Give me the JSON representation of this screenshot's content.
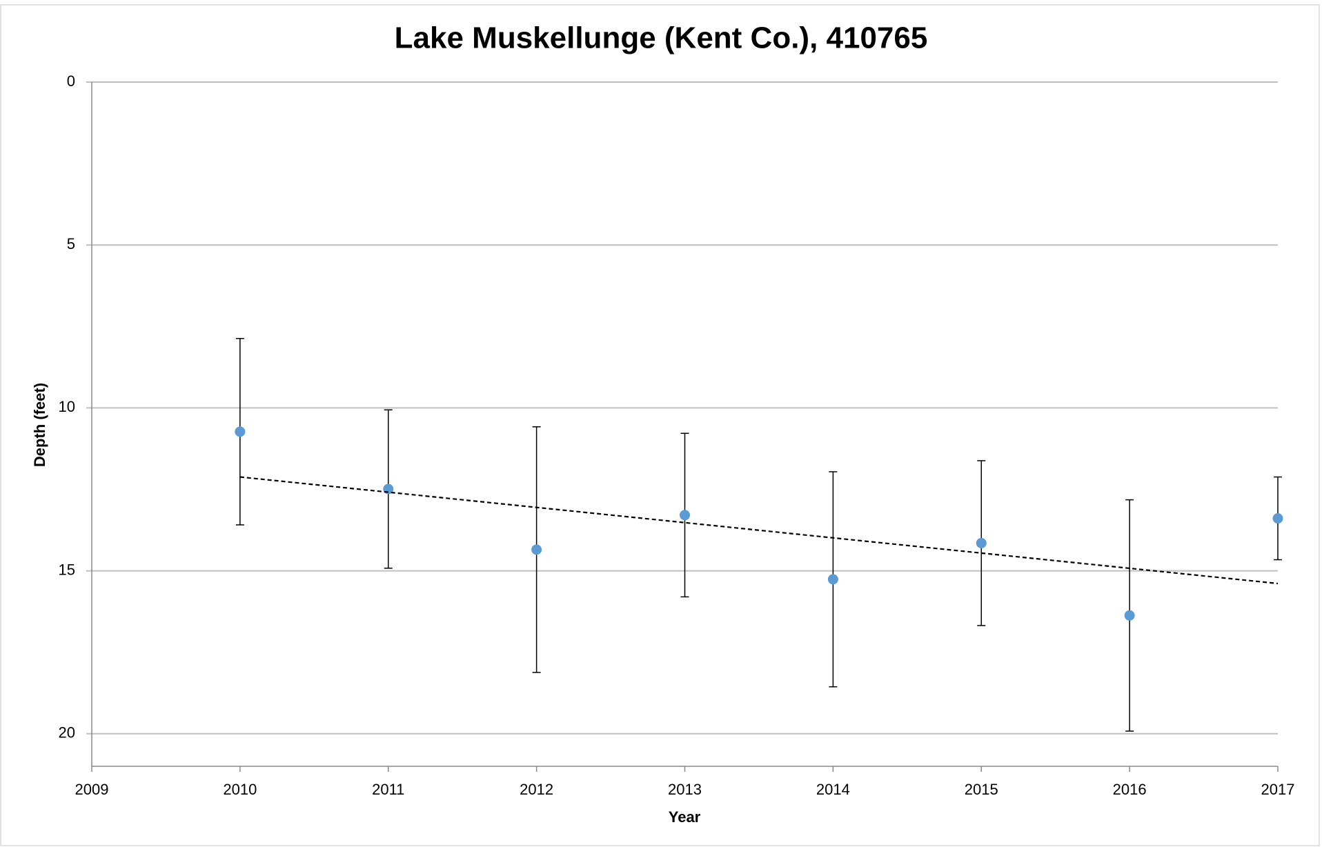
{
  "chart_data": {
    "type": "scatter",
    "title": "Lake Muskellunge (Kent Co.), 410765",
    "x_label": "Year",
    "y_label": "Depth (feet)",
    "xlim": [
      2009,
      2017
    ],
    "xticks": [
      2009,
      2010,
      2011,
      2012,
      2013,
      2014,
      2015,
      2016,
      2017
    ],
    "ylim": [
      0,
      21
    ],
    "yticks": [
      0,
      5,
      10,
      15,
      20
    ],
    "y_inverted": true,
    "grid": true,
    "series": [
      {
        "name": "Depth",
        "color": "#5b9bd5",
        "x": [
          2010,
          2011,
          2012,
          2013,
          2014,
          2015,
          2016,
          2017
        ],
        "values": [
          10.73,
          12.49,
          14.35,
          13.29,
          15.26,
          14.15,
          16.37,
          13.39
        ],
        "errors": [
          2.86,
          2.43,
          3.77,
          2.51,
          3.3,
          2.53,
          3.55,
          1.27
        ]
      }
    ],
    "trendline": {
      "x": [
        2010,
        2017
      ],
      "values": [
        12.12,
        15.39
      ],
      "color": "#000000"
    }
  }
}
